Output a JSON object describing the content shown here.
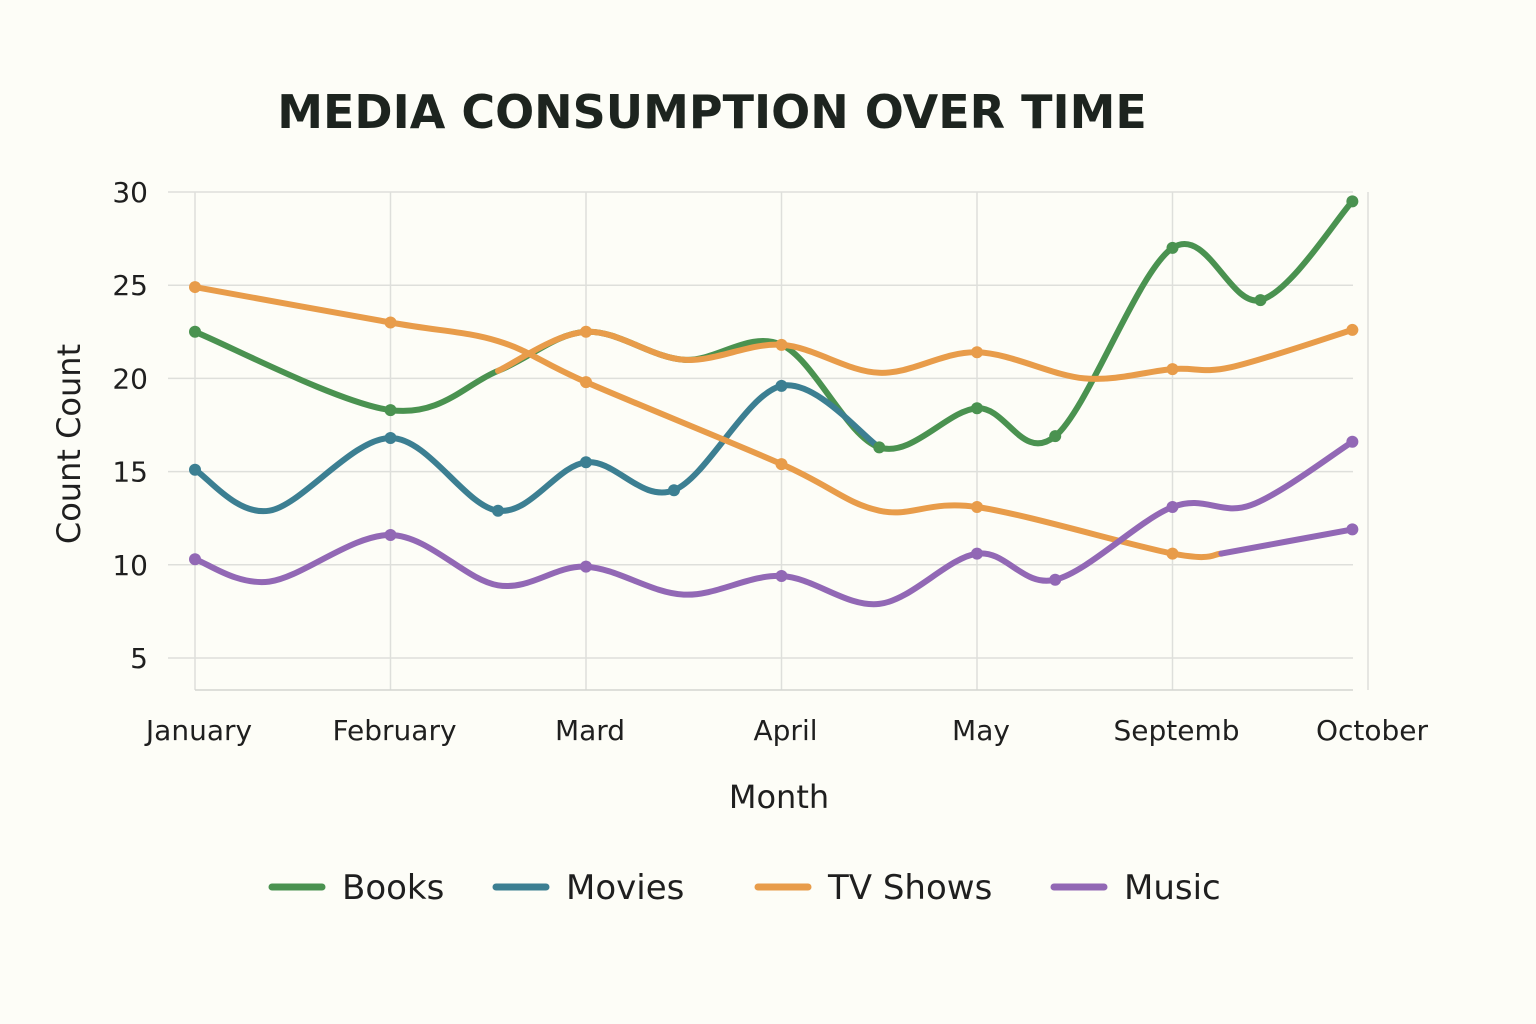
{
  "chart_data": {
    "type": "line",
    "title": "MEDIA CONSUMPTION OVER TIME",
    "xlabel": "Month",
    "ylabel": "Count Count",
    "categories": [
      "January",
      "February",
      "Mard",
      "April",
      "May",
      "Septemb",
      "October"
    ],
    "ylim": [
      5,
      30
    ],
    "yticks": [
      5,
      10,
      15,
      20,
      25,
      30
    ],
    "grid": true,
    "legend_position": "bottom",
    "series": [
      {
        "name": "Books",
        "color": "#4a9250",
        "points": [
          {
            "x": 0,
            "y": 22.5,
            "marker": true
          },
          {
            "x": 1,
            "y": 18.3,
            "marker": true
          },
          {
            "x": 1.55,
            "y": 20.4,
            "marker": false
          },
          {
            "x": 2,
            "y": 22.5,
            "marker": false
          },
          {
            "x": 2.5,
            "y": 21.0,
            "marker": false
          },
          {
            "x": 3,
            "y": 21.8,
            "marker": false
          },
          {
            "x": 3.5,
            "y": 16.3,
            "marker": true
          },
          {
            "x": 4,
            "y": 18.4,
            "marker": true
          },
          {
            "x": 4.4,
            "y": 16.9,
            "marker": true
          },
          {
            "x": 5,
            "y": 27.0,
            "marker": true
          },
          {
            "x": 5.45,
            "y": 24.2,
            "marker": true
          },
          {
            "x": 5.92,
            "y": 29.5,
            "marker": true
          }
        ]
      },
      {
        "name": "Movies",
        "color": "#3c7f92",
        "points": [
          {
            "x": 0,
            "y": 15.1,
            "marker": true
          },
          {
            "x": 0.38,
            "y": 12.9,
            "marker": false
          },
          {
            "x": 1,
            "y": 16.8,
            "marker": true
          },
          {
            "x": 1.55,
            "y": 12.9,
            "marker": true
          },
          {
            "x": 2,
            "y": 15.5,
            "marker": true
          },
          {
            "x": 2.45,
            "y": 14.0,
            "marker": true
          },
          {
            "x": 3,
            "y": 19.6,
            "marker": true
          },
          {
            "x": 3.5,
            "y": 16.3,
            "marker": false
          }
        ]
      },
      {
        "name": "TV Shows",
        "color": "#e89c4a",
        "points": [
          {
            "x": 0,
            "y": 24.9,
            "marker": true
          },
          {
            "x": 1,
            "y": 23.0,
            "marker": true
          },
          {
            "x": 1.55,
            "y": 22.0,
            "marker": false
          },
          {
            "x": 2,
            "y": 19.8,
            "marker": true
          },
          {
            "x": 3,
            "y": 15.4,
            "marker": true
          },
          {
            "x": 3.5,
            "y": 12.9,
            "marker": false
          },
          {
            "x": 4,
            "y": 13.1,
            "marker": true
          },
          {
            "x": 5,
            "y": 10.6,
            "marker": true
          },
          {
            "x": 5.25,
            "y": 10.6,
            "marker": false
          }
        ]
      },
      {
        "name": "TV Shows (upper)",
        "legend": false,
        "color": "#e89c4a",
        "points": [
          {
            "x": 1.55,
            "y": 20.4,
            "marker": false
          },
          {
            "x": 2,
            "y": 22.5,
            "marker": true
          },
          {
            "x": 2.5,
            "y": 21.0,
            "marker": false
          },
          {
            "x": 3,
            "y": 21.8,
            "marker": true
          },
          {
            "x": 3.5,
            "y": 20.3,
            "marker": false
          },
          {
            "x": 4,
            "y": 21.4,
            "marker": true
          },
          {
            "x": 4.55,
            "y": 20.0,
            "marker": false
          },
          {
            "x": 5,
            "y": 20.5,
            "marker": true
          },
          {
            "x": 5.3,
            "y": 20.6,
            "marker": false
          },
          {
            "x": 5.92,
            "y": 22.6,
            "marker": true
          }
        ]
      },
      {
        "name": "Music",
        "color": "#9268b5",
        "points": [
          {
            "x": 0,
            "y": 10.3,
            "marker": true
          },
          {
            "x": 0.38,
            "y": 9.1,
            "marker": false
          },
          {
            "x": 1,
            "y": 11.6,
            "marker": true
          },
          {
            "x": 1.55,
            "y": 8.9,
            "marker": false
          },
          {
            "x": 2,
            "y": 9.9,
            "marker": true
          },
          {
            "x": 2.5,
            "y": 8.4,
            "marker": false
          },
          {
            "x": 3,
            "y": 9.4,
            "marker": true
          },
          {
            "x": 3.5,
            "y": 7.9,
            "marker": false
          },
          {
            "x": 4,
            "y": 10.6,
            "marker": true
          },
          {
            "x": 4.4,
            "y": 9.2,
            "marker": true
          },
          {
            "x": 5,
            "y": 13.1,
            "marker": true
          },
          {
            "x": 5.4,
            "y": 13.2,
            "marker": false
          },
          {
            "x": 5.92,
            "y": 16.6,
            "marker": true
          }
        ]
      },
      {
        "name": "Music (lower)",
        "legend": false,
        "color": "#9268b5",
        "points": [
          {
            "x": 5.25,
            "y": 10.6,
            "marker": false
          },
          {
            "x": 5.92,
            "y": 11.9,
            "marker": true
          }
        ]
      }
    ],
    "legend": [
      {
        "name": "Books",
        "color": "#4a9250"
      },
      {
        "name": "Movies",
        "color": "#3c7f92"
      },
      {
        "name": "TV Shows",
        "color": "#e89c4a"
      },
      {
        "name": "Music",
        "color": "#9268b5"
      }
    ]
  }
}
